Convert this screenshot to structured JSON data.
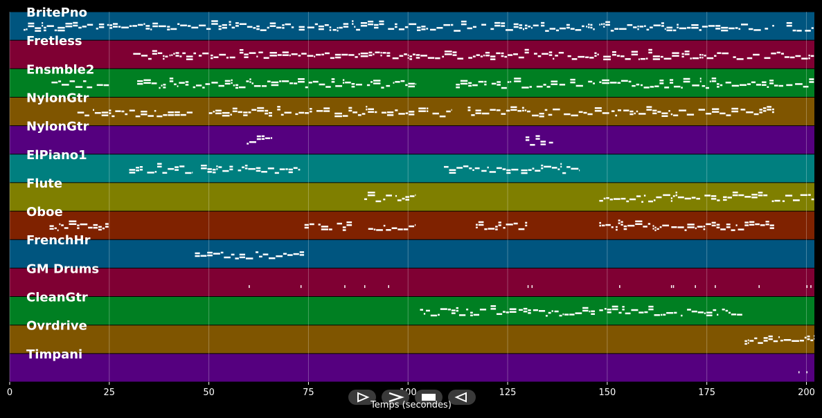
{
  "chart_data": {
    "type": "piano-roll",
    "xlabel": "Temps (secondes)",
    "xlim": [
      0,
      202
    ],
    "xticks": [
      0,
      25,
      50,
      75,
      100,
      125,
      150,
      175,
      200
    ],
    "grid": true,
    "tracks": [
      {
        "name": "BritePno",
        "color": "#00557f",
        "segments": [
          [
            3.5,
            147
          ],
          [
            148,
            192
          ],
          [
            195,
            202
          ]
        ]
      },
      {
        "name": "Fretless",
        "color": "#7f0033",
        "segments": [
          [
            31,
            148
          ],
          [
            149,
            202
          ]
        ]
      },
      {
        "name": "Ensmble2",
        "color": "#007f22",
        "segments": [
          [
            10.5,
            25
          ],
          [
            32,
            45
          ],
          [
            46,
            102
          ],
          [
            112,
            147
          ],
          [
            148,
            202
          ]
        ]
      },
      {
        "name": "NylonGtr",
        "color": "#7f5500",
        "segments": [
          [
            17,
            46
          ],
          [
            50,
            76
          ],
          [
            77,
            111
          ],
          [
            115,
            192
          ]
        ]
      },
      {
        "name": "NylonGtr",
        "color": "#55007f",
        "segments": [
          [
            59.5,
            66
          ],
          [
            129.5,
            136.5
          ]
        ]
      },
      {
        "name": "ElPiano1",
        "color": "#007f7f",
        "segments": [
          [
            30,
            46
          ],
          [
            48,
            73
          ],
          [
            109,
            143
          ]
        ]
      },
      {
        "name": "Flute",
        "color": "#7f7f00",
        "segments": [
          [
            89,
            102
          ],
          [
            148,
            202
          ]
        ]
      },
      {
        "name": "Oboe",
        "color": "#7f2200",
        "segments": [
          [
            10,
            25
          ],
          [
            74,
            86
          ],
          [
            90,
            102
          ],
          [
            117,
            130
          ],
          [
            148,
            192
          ]
        ]
      },
      {
        "name": "FrenchHr",
        "color": "#00557f",
        "segments": [
          [
            46.5,
            74
          ]
        ]
      },
      {
        "name": "GM Drums",
        "color": "#7f0033",
        "segments": []
      },
      {
        "name": "CleanGtr",
        "color": "#007f22",
        "segments": [
          [
            103,
            147
          ],
          [
            148,
            184
          ]
        ]
      },
      {
        "name": "Ovrdrive",
        "color": "#7f5500",
        "segments": [
          [
            184.5,
            202
          ]
        ]
      },
      {
        "name": "Timpani",
        "color": "#55007f",
        "segments": []
      }
    ],
    "drum_hits": [
      60,
      73,
      84,
      89,
      95,
      130,
      131,
      153,
      166,
      166.5,
      172,
      177,
      188,
      200,
      201
    ],
    "timpani_hits": [
      198,
      200
    ]
  },
  "controls": {
    "play_icon": "play-icon",
    "next_icon": "next-icon",
    "stop_icon": "stop-icon",
    "back_icon": "back-icon"
  }
}
